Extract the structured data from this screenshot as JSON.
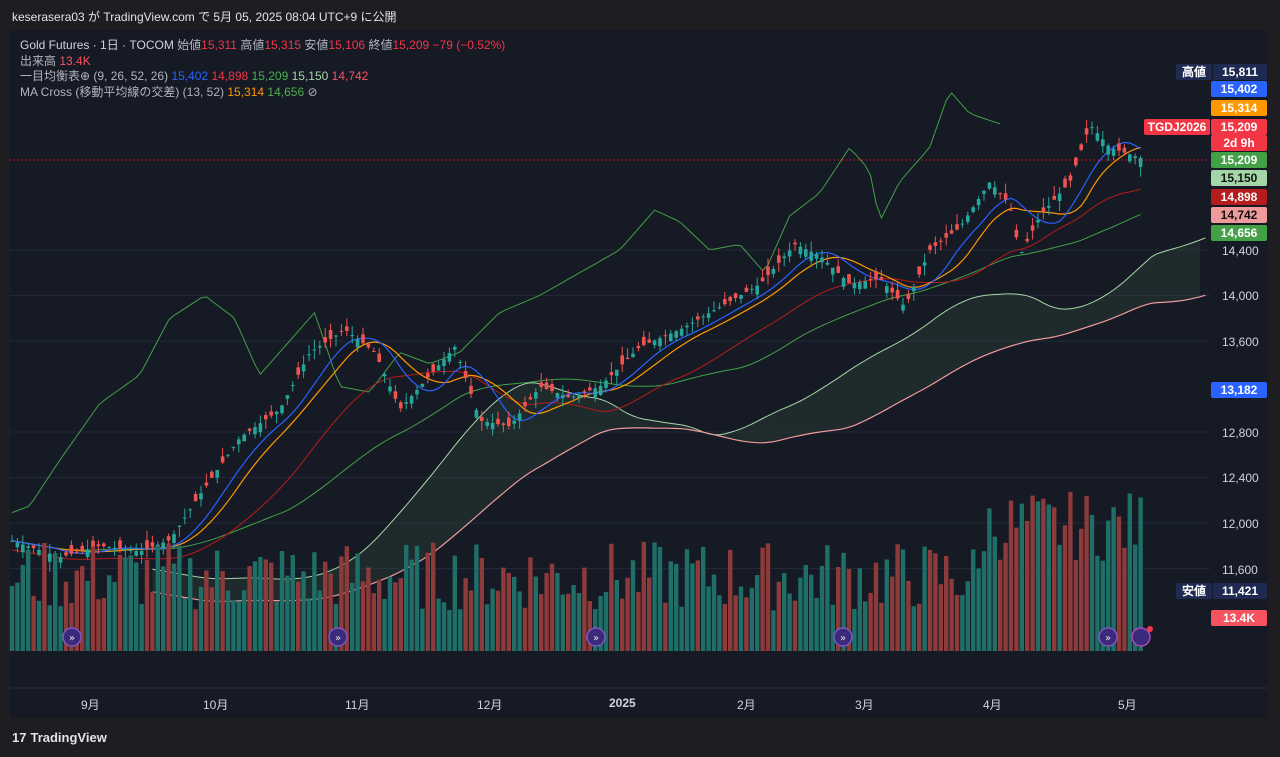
{
  "header": {
    "publish_line": "keserasera03 が TradingView.com で 5月 05, 2025 08:04 UTC+9 に公開"
  },
  "legend": {
    "symbol": "Gold Futures · 1日 · TOCOM",
    "open_label": "始値",
    "open": "15,311",
    "high_label": "高値",
    "high": "15,315",
    "low_label": "安値",
    "low": "15,106",
    "close_label": "終値",
    "close": "15,209",
    "change": "−79 (−0.52%)",
    "volume_label": "出来高",
    "volume": "13.4K",
    "ichimoku_label": "一目均衡表⊕ (9, 26, 52, 26)",
    "ichimoku_values": [
      "15,402",
      "14,898",
      "15,209",
      "15,150",
      "14,742"
    ],
    "ma_label": "MA Cross (移動平均線の交差) (13, 52)",
    "ma_values": [
      "15,314",
      "14,656"
    ],
    "ma_icon": "⊘"
  },
  "price_scale": {
    "high_tag_label": "高値",
    "high_tag_value": "15,811",
    "low_tag_label": "安値",
    "low_tag_value": "11,421",
    "tags": [
      {
        "value": "15,402",
        "color": "#2962ff"
      },
      {
        "value": "15,314",
        "color": "#ff9800"
      },
      {
        "value": "15,209",
        "color": "#f23645"
      },
      {
        "value": "2d 9h",
        "color": "#f23645"
      },
      {
        "value": "15,209",
        "color": "#43a047"
      },
      {
        "value": "15,150",
        "color": "#a5d6a7"
      },
      {
        "value": "14,898",
        "color": "#b71c1c"
      },
      {
        "value": "14,742",
        "color": "#ef9a9a"
      },
      {
        "value": "14,656",
        "color": "#43a047"
      },
      {
        "value": "13,182",
        "color": "#2962ff"
      },
      {
        "value": "13.4K",
        "color": "#f7525f"
      }
    ],
    "symbol_tag": "TGDJ2026",
    "ticks": [
      "14,400",
      "14,000",
      "13,600",
      "12,800",
      "12,400",
      "12,000",
      "11,600"
    ]
  },
  "time_scale": {
    "ticks": [
      "9月",
      "10月",
      "11月",
      "12月",
      "2025",
      "2月",
      "3月",
      "4月",
      "5月"
    ]
  },
  "footer": {
    "brand": "TradingView",
    "logo": "17"
  },
  "colors": {
    "up": "#26a69a",
    "down": "#ef5350",
    "tenkan": "#2962ff",
    "kijun": "#b71c1c",
    "span_a": "#a5d6a7",
    "span_b": "#ef9a9a",
    "lagging": "#43a047",
    "ma_fast": "#ff9800",
    "ma_slow": "#43a047"
  },
  "chart_data": {
    "type": "candlestick",
    "title": "Gold Futures · 1日 · TOCOM",
    "y_range": [
      11000,
      16300
    ],
    "series_close_approx": [
      {
        "x": "9月",
        "y": 11800
      },
      {
        "x": "10月",
        "y": 12300
      },
      {
        "x": "11月",
        "y": 13700
      },
      {
        "x": "12月",
        "y": 12900
      },
      {
        "x": "2025",
        "y": 13500
      },
      {
        "x": "2月",
        "y": 14200
      },
      {
        "x": "3月",
        "y": 14000
      },
      {
        "x": "4月",
        "y": 14500
      },
      {
        "x": "5月",
        "y": 15209
      }
    ],
    "volume_last": "13.4K"
  }
}
